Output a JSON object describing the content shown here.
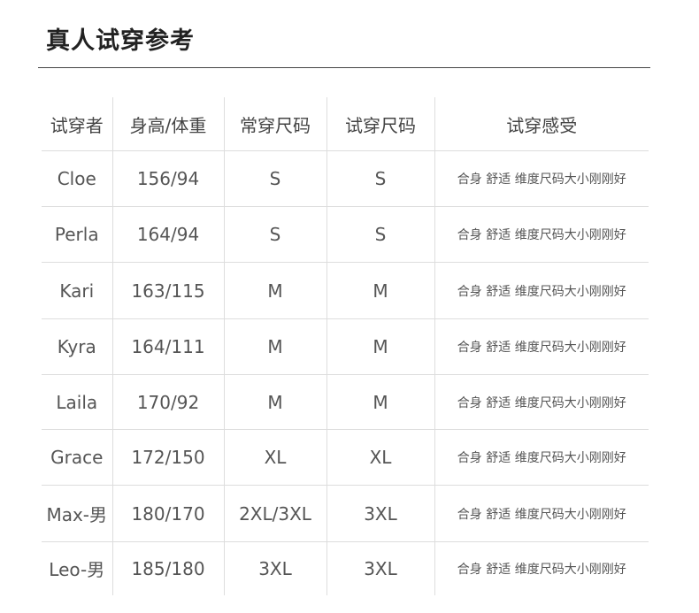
{
  "title": "真人试穿参考",
  "headers": [
    "试穿者",
    "身高/体重",
    "常穿尺码",
    "试穿尺码",
    "试穿感受"
  ],
  "rows": [
    [
      "Cloe",
      "156/94",
      "S",
      "S",
      "合身 舒适 维度尺码大小刚刚好"
    ],
    [
      "Perla",
      "164/94",
      "S",
      "S",
      "合身 舒适 维度尺码大小刚刚好"
    ],
    [
      "Kari",
      "163/115",
      "M",
      "M",
      "合身 舒适 维度尺码大小刚刚好"
    ],
    [
      "Kyra",
      "164/111",
      "M",
      "M",
      "合身 舒适 维度尺码大小刚刚好"
    ],
    [
      "Laila",
      "170/92",
      "M",
      "M",
      "合身 舒适 维度尺码大小刚刚好"
    ],
    [
      "Grace",
      "172/150",
      "XL",
      "XL",
      "合身 舒适 维度尺码大小刚刚好"
    ],
    [
      "Max-男",
      "180/170",
      "2XL/3XL",
      "3XL",
      "合身 舒适 维度尺码大小刚刚好"
    ],
    [
      "Leo-男",
      "185/180",
      "3XL",
      "3XL",
      "合身 舒适 维度尺码大小刚刚好"
    ]
  ]
}
